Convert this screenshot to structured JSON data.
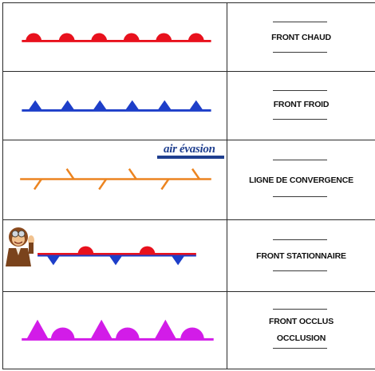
{
  "fronts": [
    {
      "id": "warm",
      "label": "FRONT CHAUD",
      "color": "#e8111d"
    },
    {
      "id": "cold",
      "label": "FRONT FROID",
      "color": "#1d3ec9"
    },
    {
      "id": "convergence",
      "label": "LIGNE DE CONVERGENCE",
      "color": "#ec8420"
    },
    {
      "id": "stationary",
      "label": "FRONT STATIONNAIRE",
      "colors": {
        "warm": "#e8111d",
        "cold": "#1d3ec9"
      }
    },
    {
      "id": "occluded",
      "label_lines": [
        "FRONT OCCLUS",
        "OCCLUSION"
      ],
      "color": "#d21ce8"
    }
  ],
  "logo": {
    "text": "air évasion",
    "color": "#1f3f8f",
    "icon": "air-evasion-logo"
  },
  "mascot": {
    "icon": "pilot-mascot"
  },
  "answer_line": {
    "color": "#3a3a3a"
  }
}
